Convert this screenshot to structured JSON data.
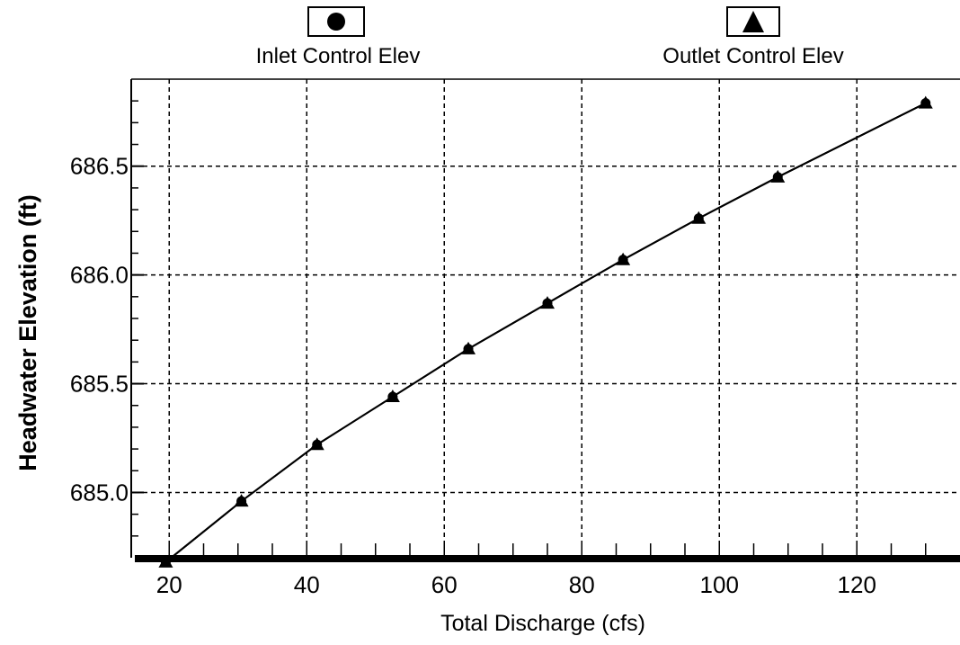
{
  "chart_data": {
    "type": "line",
    "title": "",
    "xlabel": "Total Discharge (cfs)",
    "ylabel": "Headwater Elevation (ft)",
    "xlim": [
      15,
      135
    ],
    "ylim": [
      684.7,
      686.9
    ],
    "x_ticks": [
      20,
      40,
      60,
      80,
      100,
      120
    ],
    "x_tick_labels": [
      "20",
      "40",
      "60",
      "80",
      "100",
      "120"
    ],
    "y_ticks": [
      685.0,
      685.5,
      686.0,
      686.5
    ],
    "y_tick_labels": [
      "685.0",
      "685.5",
      "686.0",
      "686.5"
    ],
    "grid": true,
    "legend_position": "top",
    "x": [
      19.5,
      30.5,
      41.5,
      52.5,
      63.5,
      75,
      86,
      97,
      108.5,
      130
    ],
    "series": [
      {
        "name": "Inlet Control Elev",
        "marker": "circle",
        "color": "#000000",
        "values": [
          684.68,
          684.96,
          685.22,
          685.44,
          685.66,
          685.87,
          686.07,
          686.26,
          686.45,
          686.79
        ]
      },
      {
        "name": "Outlet Control Elev",
        "marker": "triangle",
        "color": "#000000",
        "values": [
          684.68,
          684.96,
          685.22,
          685.44,
          685.66,
          685.87,
          686.07,
          686.26,
          686.45,
          686.79
        ]
      }
    ]
  }
}
